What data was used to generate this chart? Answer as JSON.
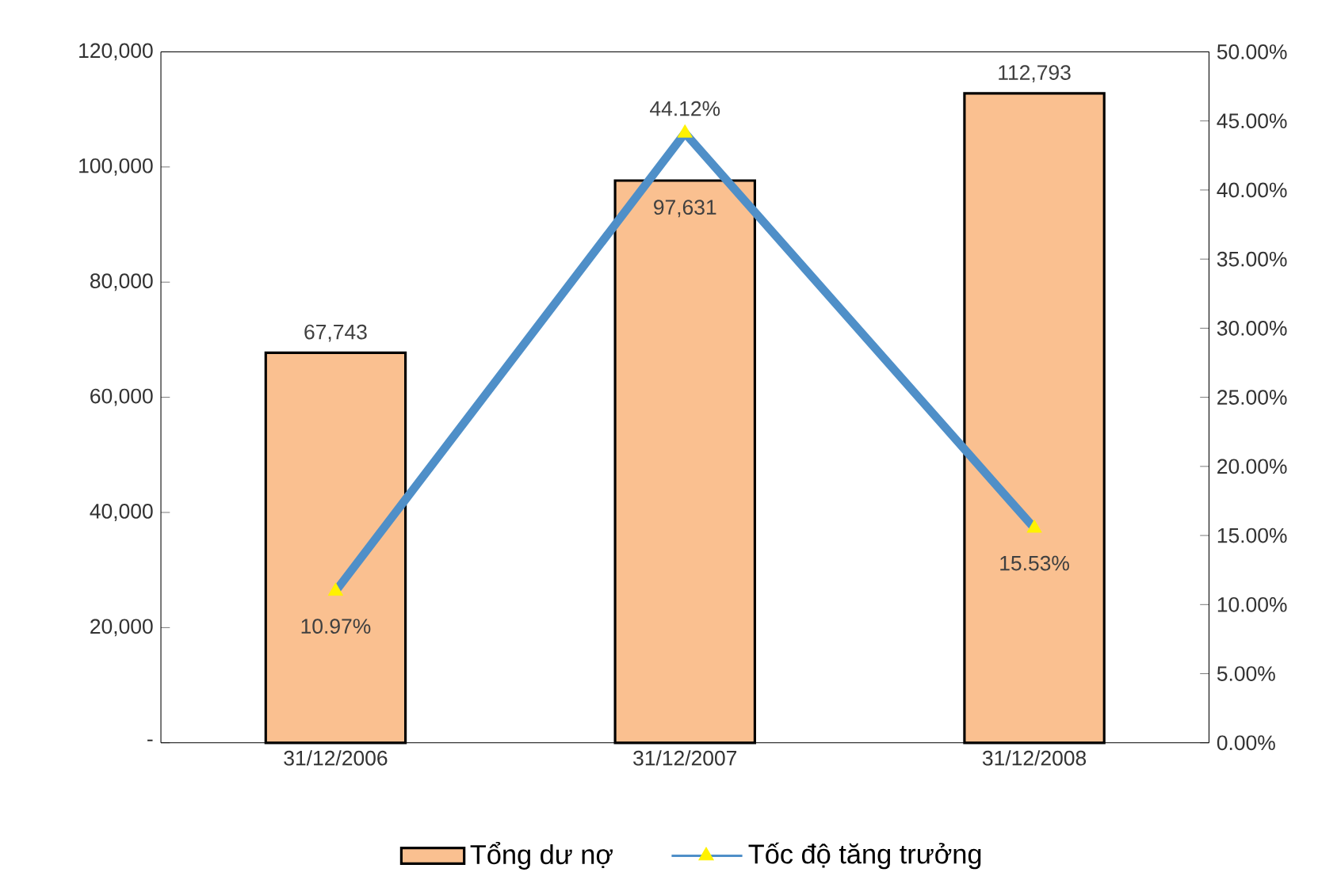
{
  "chart_data": {
    "type": "bar",
    "categories": [
      "31/12/2006",
      "31/12/2007",
      "31/12/2008"
    ],
    "series": [
      {
        "name": "Tổng dư nợ",
        "color": "#fac090",
        "values": [
          67743,
          97631,
          112793
        ],
        "value_labels": [
          "67,743",
          "97,631",
          "112,793"
        ]
      },
      {
        "name": "Tốc độ tăng trưởng",
        "type": "line",
        "axis": "y2",
        "color": "#4f8fc8",
        "marker": "triangle",
        "values": [
          10.97,
          44.12,
          15.53
        ],
        "value_labels": [
          "10.97%",
          "44.12%",
          "15.53%"
        ]
      }
    ],
    "ylim": [
      0,
      120000
    ],
    "yticks": [
      {
        "value": 0,
        "label": "-"
      },
      {
        "value": 20000,
        "label": "20,000"
      },
      {
        "value": 40000,
        "label": "40,000"
      },
      {
        "value": 60000,
        "label": "60,000"
      },
      {
        "value": 80000,
        "label": "80,000"
      },
      {
        "value": 100000,
        "label": "100,000"
      },
      {
        "value": 120000,
        "label": "120,000"
      }
    ],
    "y2lim": [
      0,
      50
    ],
    "y2ticks": [
      {
        "value": 0,
        "label": "0.00%"
      },
      {
        "value": 5,
        "label": "5.00%"
      },
      {
        "value": 10,
        "label": "10.00%"
      },
      {
        "value": 15,
        "label": "15.00%"
      },
      {
        "value": 20,
        "label": "20.00%"
      },
      {
        "value": 25,
        "label": "25.00%"
      },
      {
        "value": 30,
        "label": "30.00%"
      },
      {
        "value": 35,
        "label": "35.00%"
      },
      {
        "value": 40,
        "label": "40.00%"
      },
      {
        "value": 45,
        "label": "45.00%"
      },
      {
        "value": 50,
        "label": "50.00%"
      }
    ],
    "legend": "bottom",
    "grid": false
  }
}
